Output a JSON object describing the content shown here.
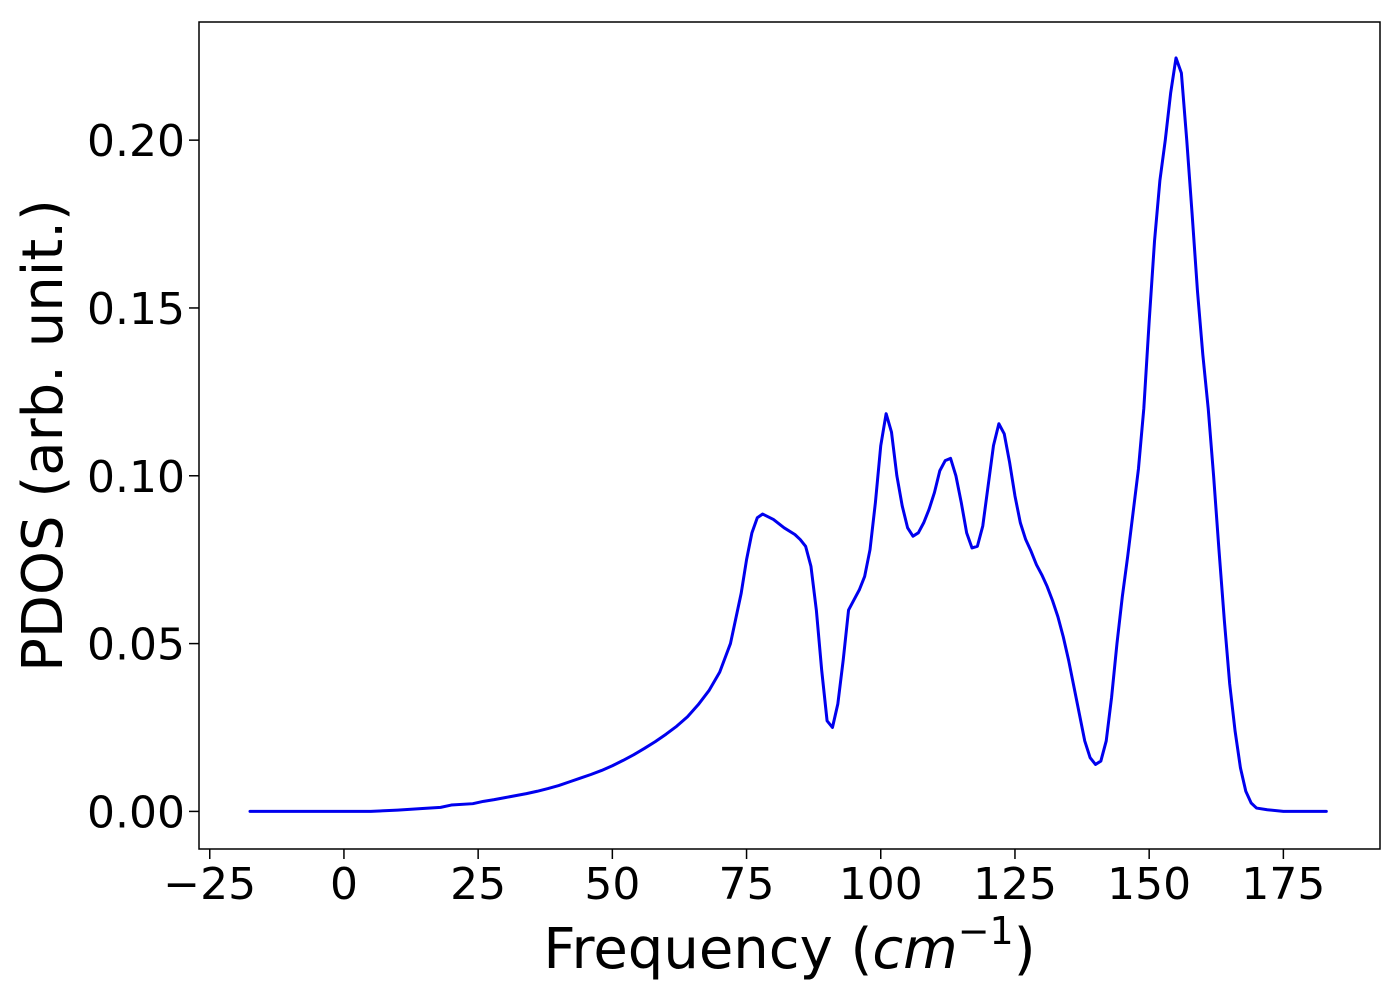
{
  "chart_data": {
    "type": "line",
    "title": "",
    "xlabel": "Frequency",
    "xlabel_unit_base": "cm",
    "xlabel_unit_exp": "−1",
    "ylabel": "PDOS (arb. unit.)",
    "xlim": [
      -27,
      193
    ],
    "ylim": [
      -0.0112,
      0.2352
    ],
    "xticks": [
      -25,
      0,
      25,
      50,
      75,
      100,
      125,
      150,
      175
    ],
    "xtick_labels": [
      "−25",
      "0",
      "25",
      "50",
      "75",
      "100",
      "125",
      "150",
      "175"
    ],
    "yticks": [
      0.0,
      0.05,
      0.1,
      0.15,
      0.2
    ],
    "ytick_labels": [
      "0.00",
      "0.05",
      "0.10",
      "0.15",
      "0.20"
    ],
    "grid": false,
    "series": [
      {
        "color": "#0000ee",
        "x": [
          -17.5,
          0,
          5,
          10,
          15,
          18,
          20,
          24,
          26,
          28,
          30,
          32,
          34,
          36,
          38,
          40,
          42,
          44,
          46,
          48,
          50,
          52,
          54,
          56,
          58,
          60,
          62,
          64,
          66,
          68,
          70,
          72,
          74,
          75,
          76,
          77,
          78,
          80,
          82,
          84,
          85,
          86,
          87,
          88,
          89,
          90,
          91,
          92,
          93,
          94,
          95,
          96,
          97,
          98,
          99,
          100,
          101,
          102,
          103,
          104,
          105,
          106,
          107,
          108,
          109,
          110,
          111,
          112,
          113,
          114,
          115,
          116,
          117,
          118,
          119,
          120,
          121,
          122,
          123,
          124,
          125,
          126,
          127,
          128,
          129,
          130,
          131,
          132,
          133,
          134,
          135,
          136,
          137,
          138,
          139,
          140,
          141,
          142,
          143,
          144,
          145,
          146,
          147,
          148,
          149,
          150,
          151,
          152,
          153,
          154,
          155,
          156,
          157,
          158,
          159,
          160,
          161,
          162,
          163,
          164,
          165,
          166,
          167,
          168,
          169,
          170,
          172,
          175,
          183
        ],
        "y": [
          0.0,
          0.0,
          0.0,
          0.0004,
          0.0009,
          0.0012,
          0.0019,
          0.0023,
          0.003,
          0.0035,
          0.0041,
          0.0047,
          0.0053,
          0.006,
          0.0068,
          0.0077,
          0.0088,
          0.0099,
          0.011,
          0.0122,
          0.0136,
          0.0152,
          0.0169,
          0.0188,
          0.0208,
          0.023,
          0.0254,
          0.0282,
          0.0318,
          0.036,
          0.0415,
          0.05,
          0.065,
          0.075,
          0.083,
          0.0875,
          0.0886,
          0.087,
          0.0845,
          0.0825,
          0.081,
          0.079,
          0.073,
          0.06,
          0.042,
          0.027,
          0.025,
          0.032,
          0.045,
          0.06,
          0.063,
          0.066,
          0.07,
          0.078,
          0.092,
          0.109,
          0.1185,
          0.113,
          0.1,
          0.091,
          0.0845,
          0.082,
          0.083,
          0.086,
          0.09,
          0.095,
          0.1015,
          0.1045,
          0.1052,
          0.1,
          0.092,
          0.083,
          0.0785,
          0.079,
          0.085,
          0.097,
          0.109,
          0.1155,
          0.1125,
          0.104,
          0.094,
          0.086,
          0.081,
          0.0775,
          0.0735,
          0.0705,
          0.067,
          0.0628,
          0.058,
          0.052,
          0.045,
          0.037,
          0.029,
          0.021,
          0.016,
          0.014,
          0.015,
          0.021,
          0.034,
          0.05,
          0.064,
          0.076,
          0.089,
          0.102,
          0.12,
          0.146,
          0.17,
          0.188,
          0.2,
          0.214,
          0.2245,
          0.22,
          0.2,
          0.178,
          0.155,
          0.136,
          0.12,
          0.1,
          0.078,
          0.057,
          0.038,
          0.024,
          0.013,
          0.006,
          0.0025,
          0.001,
          0.0005,
          0.0,
          0.0
        ]
      }
    ]
  }
}
